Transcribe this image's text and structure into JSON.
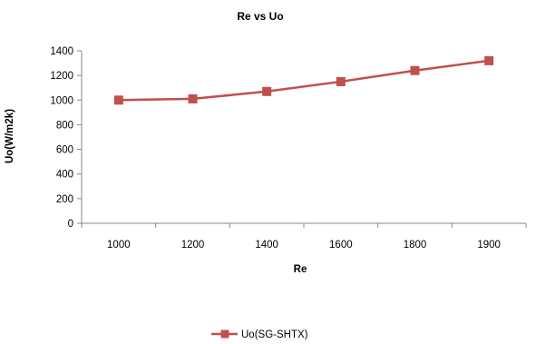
{
  "chart_data": {
    "type": "line",
    "title": "Re vs Uo",
    "xlabel": "Re",
    "ylabel": "Uo(W/m2k)",
    "categories": [
      "1000",
      "1200",
      "1400",
      "1600",
      "1800",
      "1900"
    ],
    "ylim": [
      0,
      1400
    ],
    "yticks": [
      0,
      200,
      400,
      600,
      800,
      1000,
      1200,
      1400
    ],
    "grid": false,
    "legend_position": "bottom",
    "series": [
      {
        "name": "Uo(SG-SHTX)",
        "color": "#c0504d",
        "marker": "square",
        "values": [
          1000,
          1010,
          1070,
          1150,
          1240,
          1320
        ]
      }
    ]
  }
}
